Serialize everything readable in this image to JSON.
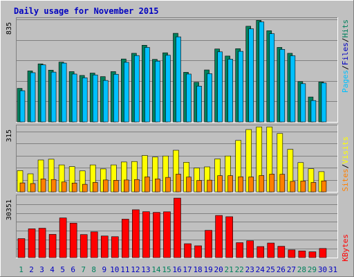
{
  "title": "Daily usage for November 2015",
  "colors": {
    "background": "#c0c0c0",
    "title": "#0000c0",
    "hits": "#00805c",
    "files": "#00c0ff",
    "pages": "#00c0ff",
    "visits": "#ffff00",
    "sites": "#ff8000",
    "kbytes": "#ff0000",
    "weekend": "#00805c",
    "weekday": "#0000c0"
  },
  "chart_data": [
    {
      "type": "bar",
      "panel": "hits-files-pages",
      "categories": [
        "1",
        "2",
        "3",
        "4",
        "5",
        "6",
        "7",
        "8",
        "9",
        "10",
        "11",
        "12",
        "13",
        "14",
        "15",
        "16",
        "17",
        "18",
        "19",
        "20",
        "21",
        "22",
        "23",
        "24",
        "25",
        "26",
        "27",
        "28",
        "29",
        "30",
        "31"
      ],
      "series": [
        {
          "name": "Hits",
          "values": [
            342,
            520,
            592,
            528,
            610,
            513,
            474,
            498,
            462,
            513,
            642,
            700,
            782,
            638,
            705,
            904,
            506,
            404,
            530,
            744,
            672,
            747,
            976,
            1036,
            930,
            760,
            700,
            411,
            254,
            407,
            0
          ]
        },
        {
          "name": "Files",
          "values": [
            318,
            502,
            582,
            508,
            600,
            488,
            450,
            479,
            423,
            486,
            608,
            677,
            760,
            620,
            680,
            868,
            488,
            365,
            492,
            715,
            640,
            720,
            950,
            1020,
            900,
            740,
            675,
            390,
            218,
            397,
            0
          ]
        }
      ],
      "ytick_label": "835",
      "ytick_value": 835,
      "ylim": [
        0,
        1060
      ],
      "right_legend": [
        "Pages",
        "Files",
        "Hits"
      ]
    },
    {
      "type": "bar",
      "panel": "visits-sites",
      "categories": [
        "1",
        "2",
        "3",
        "4",
        "5",
        "6",
        "7",
        "8",
        "9",
        "10",
        "11",
        "12",
        "13",
        "14",
        "15",
        "16",
        "17",
        "18",
        "19",
        "20",
        "21",
        "22",
        "23",
        "24",
        "25",
        "26",
        "27",
        "28",
        "29",
        "30",
        "31"
      ],
      "series": [
        {
          "name": "Visits",
          "values": [
            138,
            117,
            207,
            212,
            175,
            164,
            136,
            175,
            149,
            175,
            194,
            197,
            236,
            226,
            233,
            270,
            192,
            155,
            162,
            214,
            233,
            334,
            405,
            422,
            422,
            379,
            276,
            190,
            150,
            131,
            0
          ]
        },
        {
          "name": "Sites",
          "values": [
            58,
            54,
            84,
            80,
            64,
            57,
            49,
            61,
            77,
            75,
            77,
            80,
            97,
            84,
            94,
            115,
            96,
            74,
            76,
            105,
            105,
            98,
            97,
            106,
            115,
            114,
            68,
            70,
            61,
            71,
            0
          ]
        }
      ],
      "ytick_label": "315",
      "ytick_value": 315,
      "ylim": [
        0,
        432
      ],
      "right_legend": [
        "Sites",
        "Visits"
      ]
    },
    {
      "type": "bar",
      "panel": "kbytes",
      "categories": [
        "1",
        "2",
        "3",
        "4",
        "5",
        "6",
        "7",
        "8",
        "9",
        "10",
        "11",
        "12",
        "13",
        "14",
        "15",
        "16",
        "17",
        "18",
        "19",
        "20",
        "21",
        "22",
        "23",
        "24",
        "25",
        "26",
        "27",
        "28",
        "29",
        "30",
        "31"
      ],
      "series": [
        {
          "name": "KBytes",
          "values": [
            16160,
            24500,
            25000,
            19770,
            33740,
            29320,
            19600,
            21900,
            18390,
            17800,
            32700,
            40700,
            39050,
            38460,
            38970,
            50600,
            11800,
            10040,
            23200,
            35860,
            34780,
            12700,
            14300,
            9410,
            12380,
            9630,
            6590,
            5700,
            4960,
            7780,
            0
          ]
        }
      ],
      "ytick_label": "30351",
      "ytick_value": 30351,
      "ylim": [
        0,
        53000
      ],
      "right_legend": [
        "KBytes"
      ]
    }
  ],
  "x_labels": [
    {
      "text": "1",
      "weekend": true
    },
    {
      "text": "2",
      "weekend": false
    },
    {
      "text": "3",
      "weekend": false
    },
    {
      "text": "4",
      "weekend": false
    },
    {
      "text": "5",
      "weekend": false
    },
    {
      "text": "6",
      "weekend": false
    },
    {
      "text": "7",
      "weekend": true
    },
    {
      "text": "8",
      "weekend": true
    },
    {
      "text": "9",
      "weekend": false
    },
    {
      "text": "10",
      "weekend": false
    },
    {
      "text": "11",
      "weekend": false
    },
    {
      "text": "12",
      "weekend": false
    },
    {
      "text": "13",
      "weekend": false
    },
    {
      "text": "14",
      "weekend": true
    },
    {
      "text": "15",
      "weekend": true
    },
    {
      "text": "16",
      "weekend": false
    },
    {
      "text": "17",
      "weekend": false
    },
    {
      "text": "18",
      "weekend": false
    },
    {
      "text": "19",
      "weekend": false
    },
    {
      "text": "20",
      "weekend": false
    },
    {
      "text": "21",
      "weekend": true
    },
    {
      "text": "22",
      "weekend": true
    },
    {
      "text": "23",
      "weekend": false
    },
    {
      "text": "24",
      "weekend": false
    },
    {
      "text": "25",
      "weekend": false
    },
    {
      "text": "26",
      "weekend": false
    },
    {
      "text": "27",
      "weekend": false
    },
    {
      "text": "28",
      "weekend": true
    },
    {
      "text": "29",
      "weekend": true
    },
    {
      "text": "30",
      "weekend": false
    },
    {
      "text": "31",
      "weekend": false
    }
  ]
}
